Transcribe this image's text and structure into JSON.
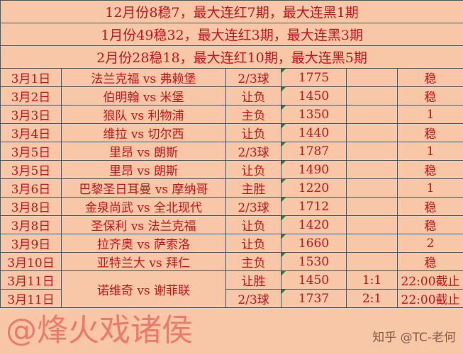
{
  "watermark": "@烽火戏诸侯",
  "watermark2": "知乎 @TC-老何",
  "summary": [
    "12月份8稳7，最大连红7期，最大连黑1期",
    "1月份49稳32，最大连红3期，最大连黑3期",
    "2月份28稳18，最大连红10期，最大连黑5期"
  ],
  "rows": [
    [
      "3月1日",
      "法兰克福 vs 弗赖堡",
      "2/3球",
      "1775",
      "",
      "稳"
    ],
    [
      "3月2日",
      "伯明翰 vs 米堡",
      "让负",
      "1450",
      "",
      "稳"
    ],
    [
      "3月3日",
      "狼队 vs 利物浦",
      "主负",
      "1350",
      "",
      "1"
    ],
    [
      "3月4日",
      "维拉 vs 切尔西",
      "让负",
      "1440",
      "",
      "稳"
    ],
    [
      "3月5日",
      "里昂 vs 朗斯",
      "2/3球",
      "1787",
      "",
      "1"
    ],
    [
      "3月5日",
      "里昂 vs 朗斯",
      "让负",
      "1490",
      "",
      "稳"
    ],
    [
      "3月6日",
      "巴黎圣日耳曼 vs 摩纳哥",
      "主胜",
      "1220",
      "",
      "1"
    ],
    [
      "3月8日",
      "金泉尚武 vs 全北现代",
      "2/3球",
      "1712",
      "",
      "稳"
    ],
    [
      "3月8日",
      "圣保利 vs 法兰克福",
      "让负",
      "1420",
      "",
      "稳"
    ],
    [
      "3月9日",
      "拉齐奥 vs 萨索洛",
      "让负",
      "1660",
      "",
      "2"
    ],
    [
      "3月10日",
      "亚特兰大 vs 拜仁",
      "主负",
      "1530",
      "",
      "稳"
    ]
  ],
  "last": {
    "date1": "3月11日",
    "date2": "3月11日",
    "match": "诺维奇 vs 谢菲联",
    "p1": "让胜",
    "p2": "2/3球",
    "o1": "1450",
    "o2": "1737",
    "s1": "1:1",
    "s2": "2:1",
    "r1": "22:00截止",
    "r2": "22:00截止"
  }
}
